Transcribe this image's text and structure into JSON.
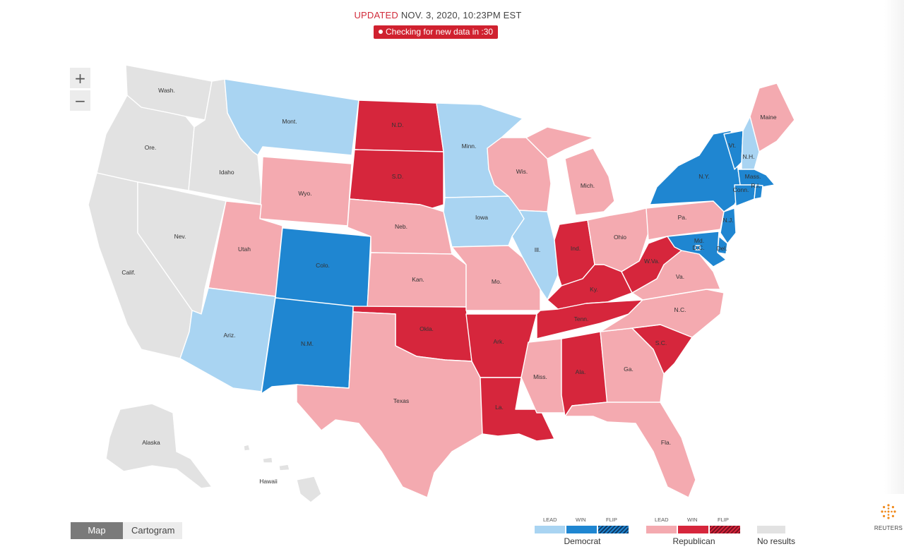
{
  "header": {
    "updated_label": "UPDATED",
    "updated_time": "NOV. 3, 2020, 10:23PM EST",
    "refresh_status": "Checking for new data in :30"
  },
  "zoom": {
    "in_label": "+",
    "out_label": "−"
  },
  "colors": {
    "dem_lead": "#a9d4f2",
    "dem_win": "#1f86d1",
    "rep_lead": "#f4aab0",
    "rep_win": "#d6263c",
    "no_results": "#e2e2e2",
    "flip_dem": "#0f3a66",
    "flip_rep": "#7a1020"
  },
  "states": {
    "wa": "Wash.",
    "or": "Ore.",
    "ca": "Calif.",
    "id": "Idaho",
    "nv": "Nev.",
    "mt": "Mont.",
    "wy": "Wyo.",
    "ut": "Utah",
    "co": "Colo.",
    "az": "Ariz.",
    "nm": "N.M.",
    "nd": "N.D.",
    "sd": "S.D.",
    "ne": "Neb.",
    "ks": "Kan.",
    "ok": "Okla.",
    "tx": "Texas",
    "mn": "Minn.",
    "ia": "Iowa",
    "mo": "Mo.",
    "ar": "Ark.",
    "la": "La.",
    "wi": "Wis.",
    "il": "Ill.",
    "mi": "Mich.",
    "in": "Ind.",
    "oh": "Ohio",
    "ky": "Ky.",
    "tn": "Tenn.",
    "ms": "Miss.",
    "al": "Ala.",
    "ga": "Ga.",
    "fl": "Fla.",
    "sc": "S.C.",
    "nc": "N.C.",
    "va": "Va.",
    "wv": "W.Va.",
    "pa": "Pa.",
    "ny": "N.Y.",
    "vt": "Vt.",
    "nh": "N.H.",
    "me": "Maine",
    "ma": "Mass.",
    "ri": "R.I.",
    "ct": "Conn.",
    "nj": "N.J.",
    "de": "Del.",
    "md": "Md.",
    "dc": "D.C.",
    "ak": "Alaska",
    "hi": "Hawaii"
  },
  "view_toggle": {
    "map": "Map",
    "cartogram": "Cartogram"
  },
  "legend": {
    "democrat": {
      "party": "Democrat",
      "lead": "LEAD",
      "win": "WIN",
      "flip": "FLIP"
    },
    "republican": {
      "party": "Republican",
      "lead": "LEAD",
      "win": "WIN",
      "flip": "FLIP"
    },
    "no_results": "No results"
  },
  "brand": {
    "logo_text": "REUTERS"
  }
}
